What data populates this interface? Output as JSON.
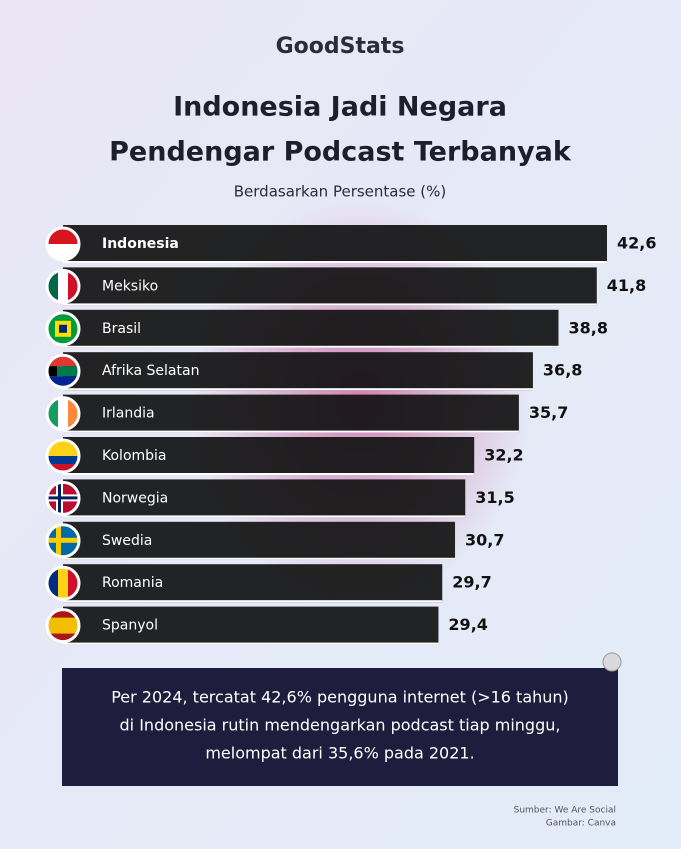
{
  "logo": "GoodStats",
  "chart_data": {
    "type": "bar",
    "title": [
      "Indonesia Jadi Negara",
      "Pendengar Podcast Terbanyak"
    ],
    "subtitle": "Berdasarkan Persentase (%)",
    "categories": [
      "Indonesia",
      "Meksiko",
      "Brasil",
      "Afrika Selatan",
      "Irlandia",
      "Kolombia",
      "Norwegia",
      "Swedia",
      "Romania",
      "Spanyol"
    ],
    "values": [
      42.6,
      41.8,
      38.8,
      36.8,
      35.7,
      32.2,
      31.5,
      30.7,
      29.7,
      29.4
    ],
    "value_labels": [
      "42,6",
      "41,8",
      "38,8",
      "36,8",
      "35,7",
      "32,2",
      "31,5",
      "30,7",
      "29,7",
      "29,4"
    ],
    "color": "#111111"
  },
  "note": [
    "Per 2024, tercatat 42,6% pengguna internet (>16 tahun)",
    "di Indonesia rutin mendengarkan podcast tiap minggu,",
    "melompat dari 35,6% pada 2021."
  ],
  "source": [
    "Sumber: We Are Social",
    "Gambar: Canva"
  ]
}
